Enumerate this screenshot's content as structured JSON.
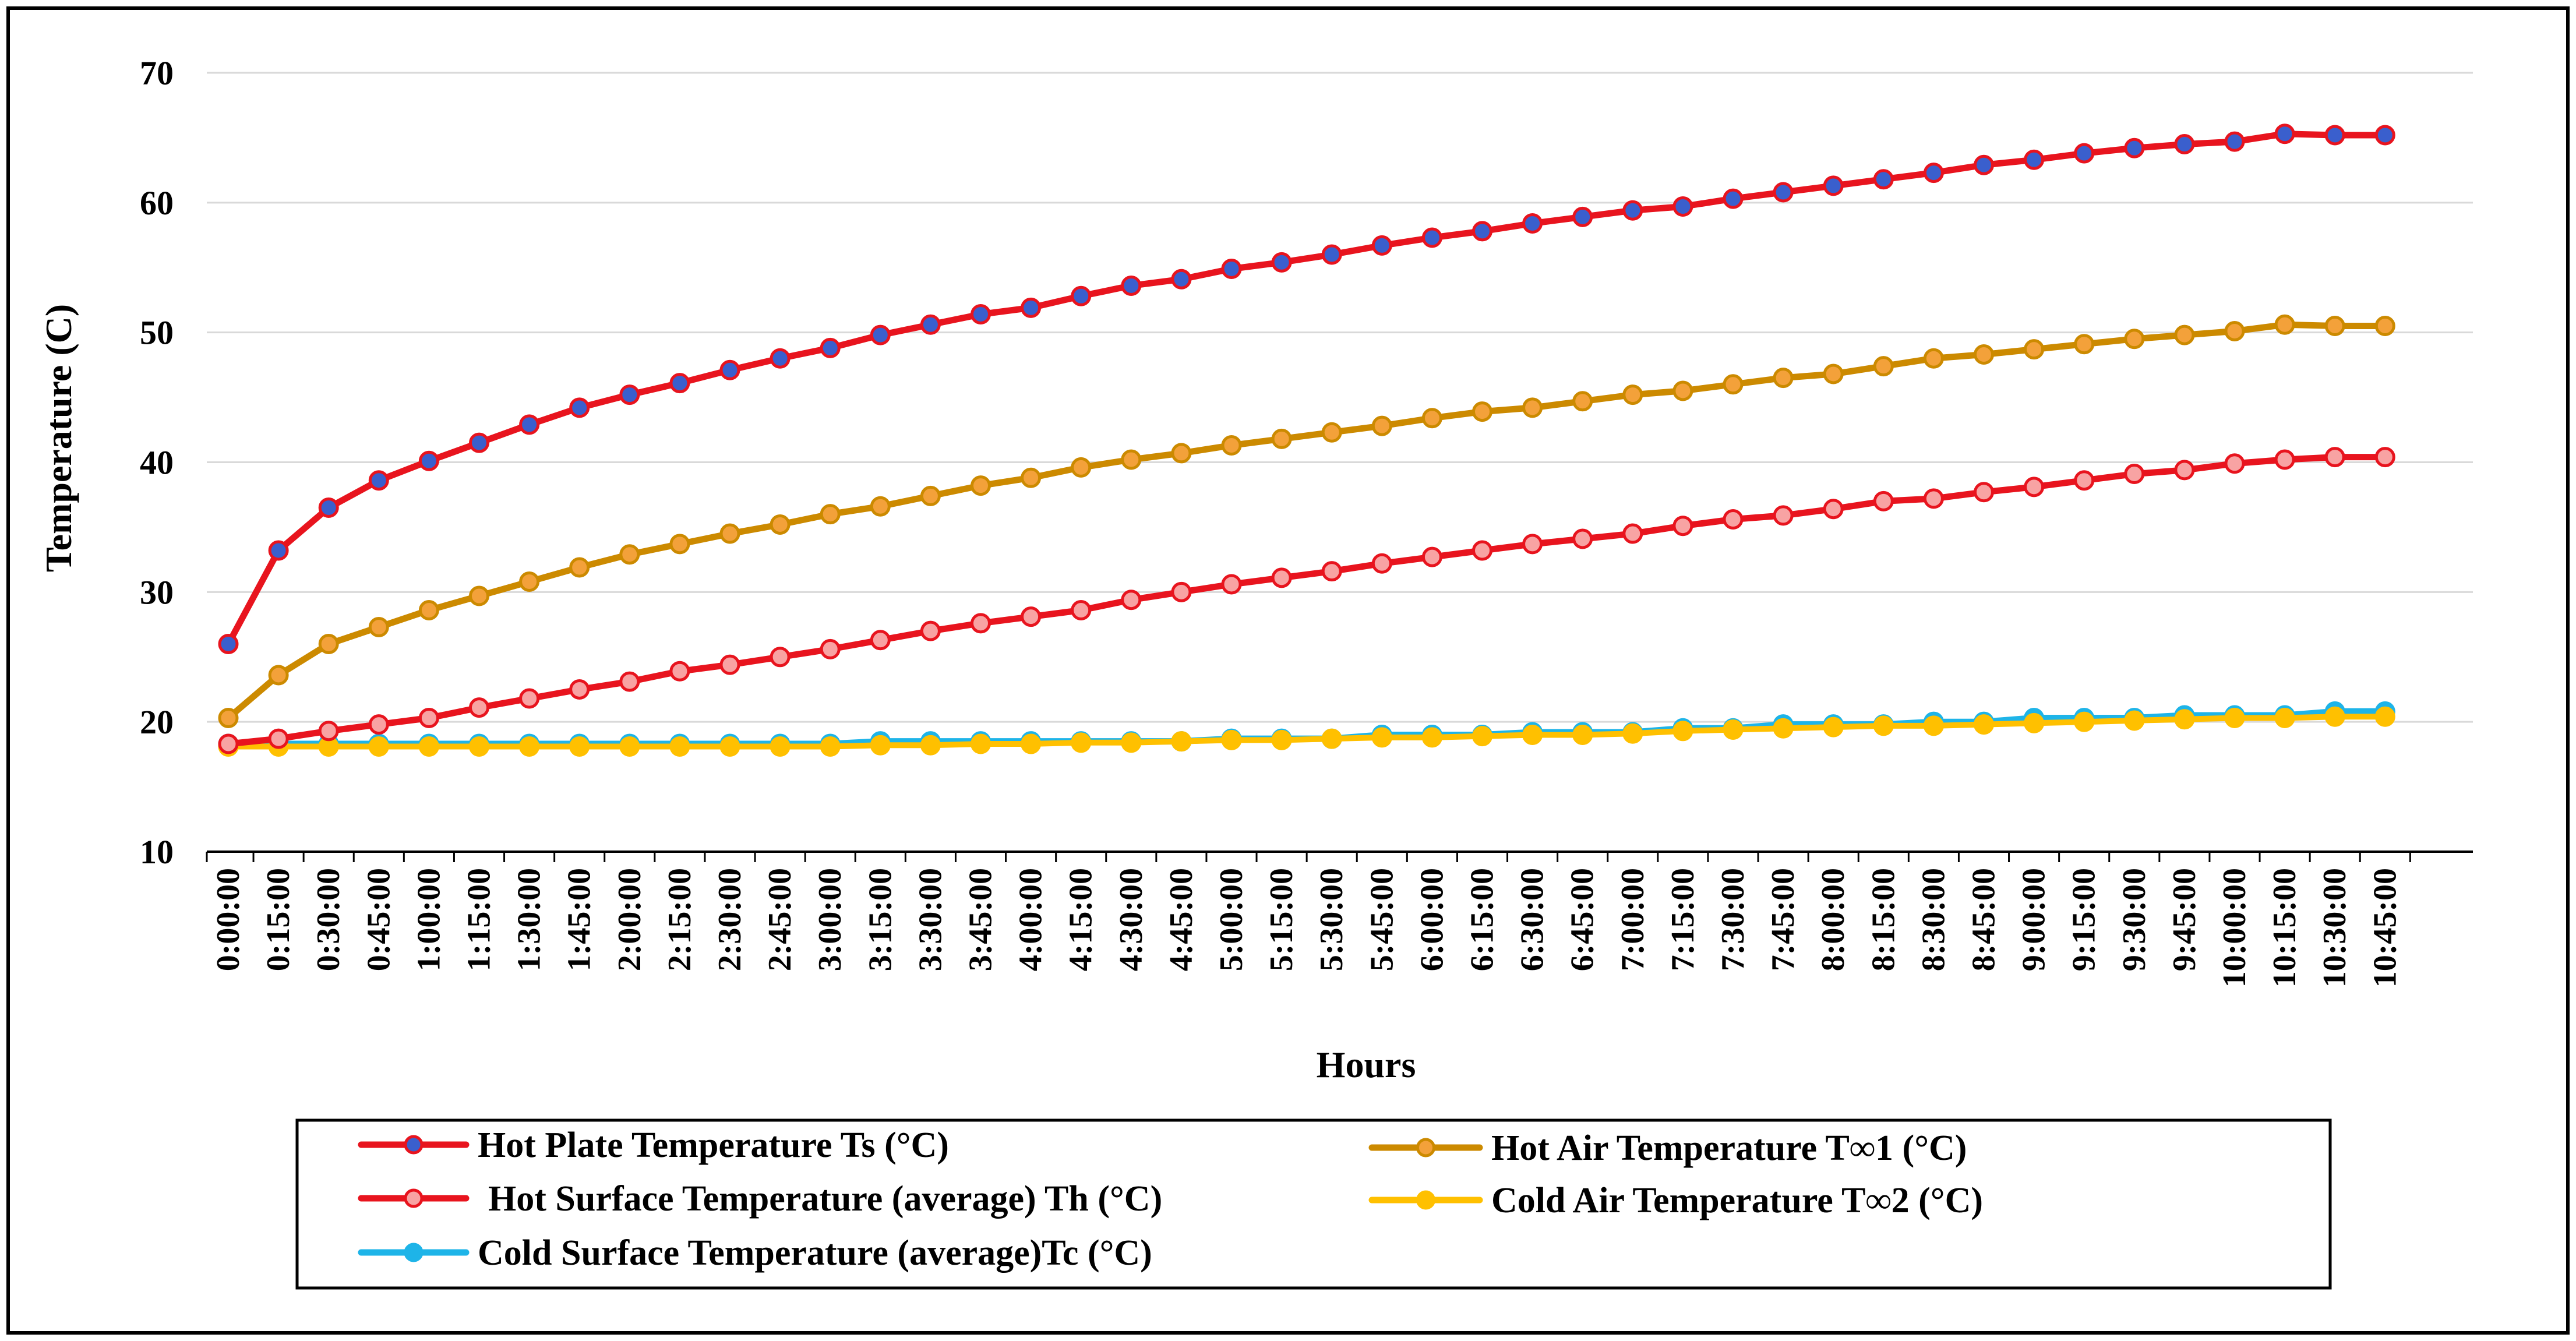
{
  "chart_data": {
    "type": "line",
    "title": "",
    "xlabel": "Hours",
    "ylabel": "Temperature (C)",
    "ylim": [
      10,
      70
    ],
    "yticks": [
      10,
      20,
      30,
      40,
      50,
      60,
      70
    ],
    "grid": true,
    "legend_position": "bottom",
    "categories": [
      "0:00:00",
      "0:15:00",
      "0:30:00",
      "0:45:00",
      "1:00:00",
      "1:15:00",
      "1:30:00",
      "1:45:00",
      "2:00:00",
      "2:15:00",
      "2:30:00",
      "2:45:00",
      "3:00:00",
      "3:15:00",
      "3:30:00",
      "3:45:00",
      "4:00:00",
      "4:15:00",
      "4:30:00",
      "4:45:00",
      "5:00:00",
      "5:15:00",
      "5:30:00",
      "5:45:00",
      "6:00:00",
      "6:15:00",
      "6:30:00",
      "6:45:00",
      "7:00:00",
      "7:15:00",
      "7:30:00",
      "7:45:00",
      "8:00:00",
      "8:15:00",
      "8:30:00",
      "8:45:00",
      "9:00:00",
      "9:15:00",
      "9:30:00",
      "9:45:00",
      "10:00:00",
      "10:15:00",
      "10:30:00",
      "10:45:00"
    ],
    "series": [
      {
        "name": "Hot Plate Temperature Ts (°C)",
        "color": "#e8141e",
        "marker_fill": "#3a5fcd",
        "values": [
          26.0,
          33.2,
          36.5,
          38.6,
          40.1,
          41.5,
          42.9,
          44.2,
          45.2,
          46.1,
          47.1,
          48.0,
          48.8,
          49.8,
          50.6,
          51.4,
          51.9,
          52.8,
          53.6,
          54.1,
          54.9,
          55.4,
          56.0,
          56.7,
          57.3,
          57.8,
          58.4,
          58.9,
          59.4,
          59.7,
          60.3,
          60.8,
          61.3,
          61.8,
          62.3,
          62.9,
          63.3,
          63.8,
          64.2,
          64.5,
          64.7,
          65.3,
          65.2,
          65.2
        ]
      },
      {
        "name": "Hot Air Temperature T∞1 (°C)",
        "color": "#cc8a00",
        "marker_fill": "#f3a13a",
        "values": [
          20.3,
          23.6,
          26.0,
          27.3,
          28.6,
          29.7,
          30.8,
          31.9,
          32.9,
          33.7,
          34.5,
          35.2,
          36.0,
          36.6,
          37.4,
          38.2,
          38.8,
          39.6,
          40.2,
          40.7,
          41.3,
          41.8,
          42.3,
          42.8,
          43.4,
          43.9,
          44.2,
          44.7,
          45.2,
          45.5,
          46.0,
          46.5,
          46.8,
          47.4,
          48.0,
          48.3,
          48.7,
          49.1,
          49.5,
          49.8,
          50.1,
          50.6,
          50.5,
          50.5
        ]
      },
      {
        "name": "Hot Surface Temperature (average) Th (°C)",
        "color": "#e8141e",
        "marker_fill": "#f8a3a3",
        "values": [
          18.3,
          18.7,
          19.3,
          19.8,
          20.3,
          21.1,
          21.8,
          22.5,
          23.1,
          23.9,
          24.4,
          25.0,
          25.6,
          26.3,
          27.0,
          27.6,
          28.1,
          28.6,
          29.4,
          30.0,
          30.6,
          31.1,
          31.6,
          32.2,
          32.7,
          33.2,
          33.7,
          34.1,
          34.5,
          35.1,
          35.6,
          35.9,
          36.4,
          37.0,
          37.2,
          37.7,
          38.1,
          38.6,
          39.1,
          39.4,
          39.9,
          40.2,
          40.4,
          40.4
        ]
      },
      {
        "name": "Cold Air Temperature  T∞2 (°C)",
        "color": "#ffc000",
        "marker_fill": "#ffc000",
        "values": [
          18.1,
          18.1,
          18.1,
          18.1,
          18.1,
          18.1,
          18.1,
          18.1,
          18.1,
          18.1,
          18.1,
          18.1,
          18.1,
          18.2,
          18.2,
          18.3,
          18.3,
          18.4,
          18.4,
          18.5,
          18.6,
          18.6,
          18.7,
          18.8,
          18.8,
          18.9,
          19.0,
          19.0,
          19.1,
          19.3,
          19.4,
          19.5,
          19.6,
          19.7,
          19.7,
          19.8,
          19.9,
          20.0,
          20.1,
          20.2,
          20.3,
          20.3,
          20.4,
          20.4
        ]
      },
      {
        "name": "Cold Surface Temperature (average)Tc (°C)",
        "color": "#1eb4e8",
        "marker_fill": "#1eb4e8",
        "values": [
          18.3,
          18.3,
          18.3,
          18.3,
          18.3,
          18.3,
          18.3,
          18.3,
          18.3,
          18.3,
          18.3,
          18.3,
          18.3,
          18.5,
          18.5,
          18.5,
          18.5,
          18.5,
          18.5,
          18.5,
          18.7,
          18.7,
          18.7,
          19.0,
          19.0,
          19.0,
          19.2,
          19.2,
          19.2,
          19.5,
          19.5,
          19.8,
          19.8,
          19.8,
          20.0,
          20.0,
          20.3,
          20.3,
          20.3,
          20.5,
          20.5,
          20.5,
          20.8,
          20.8
        ]
      }
    ]
  }
}
